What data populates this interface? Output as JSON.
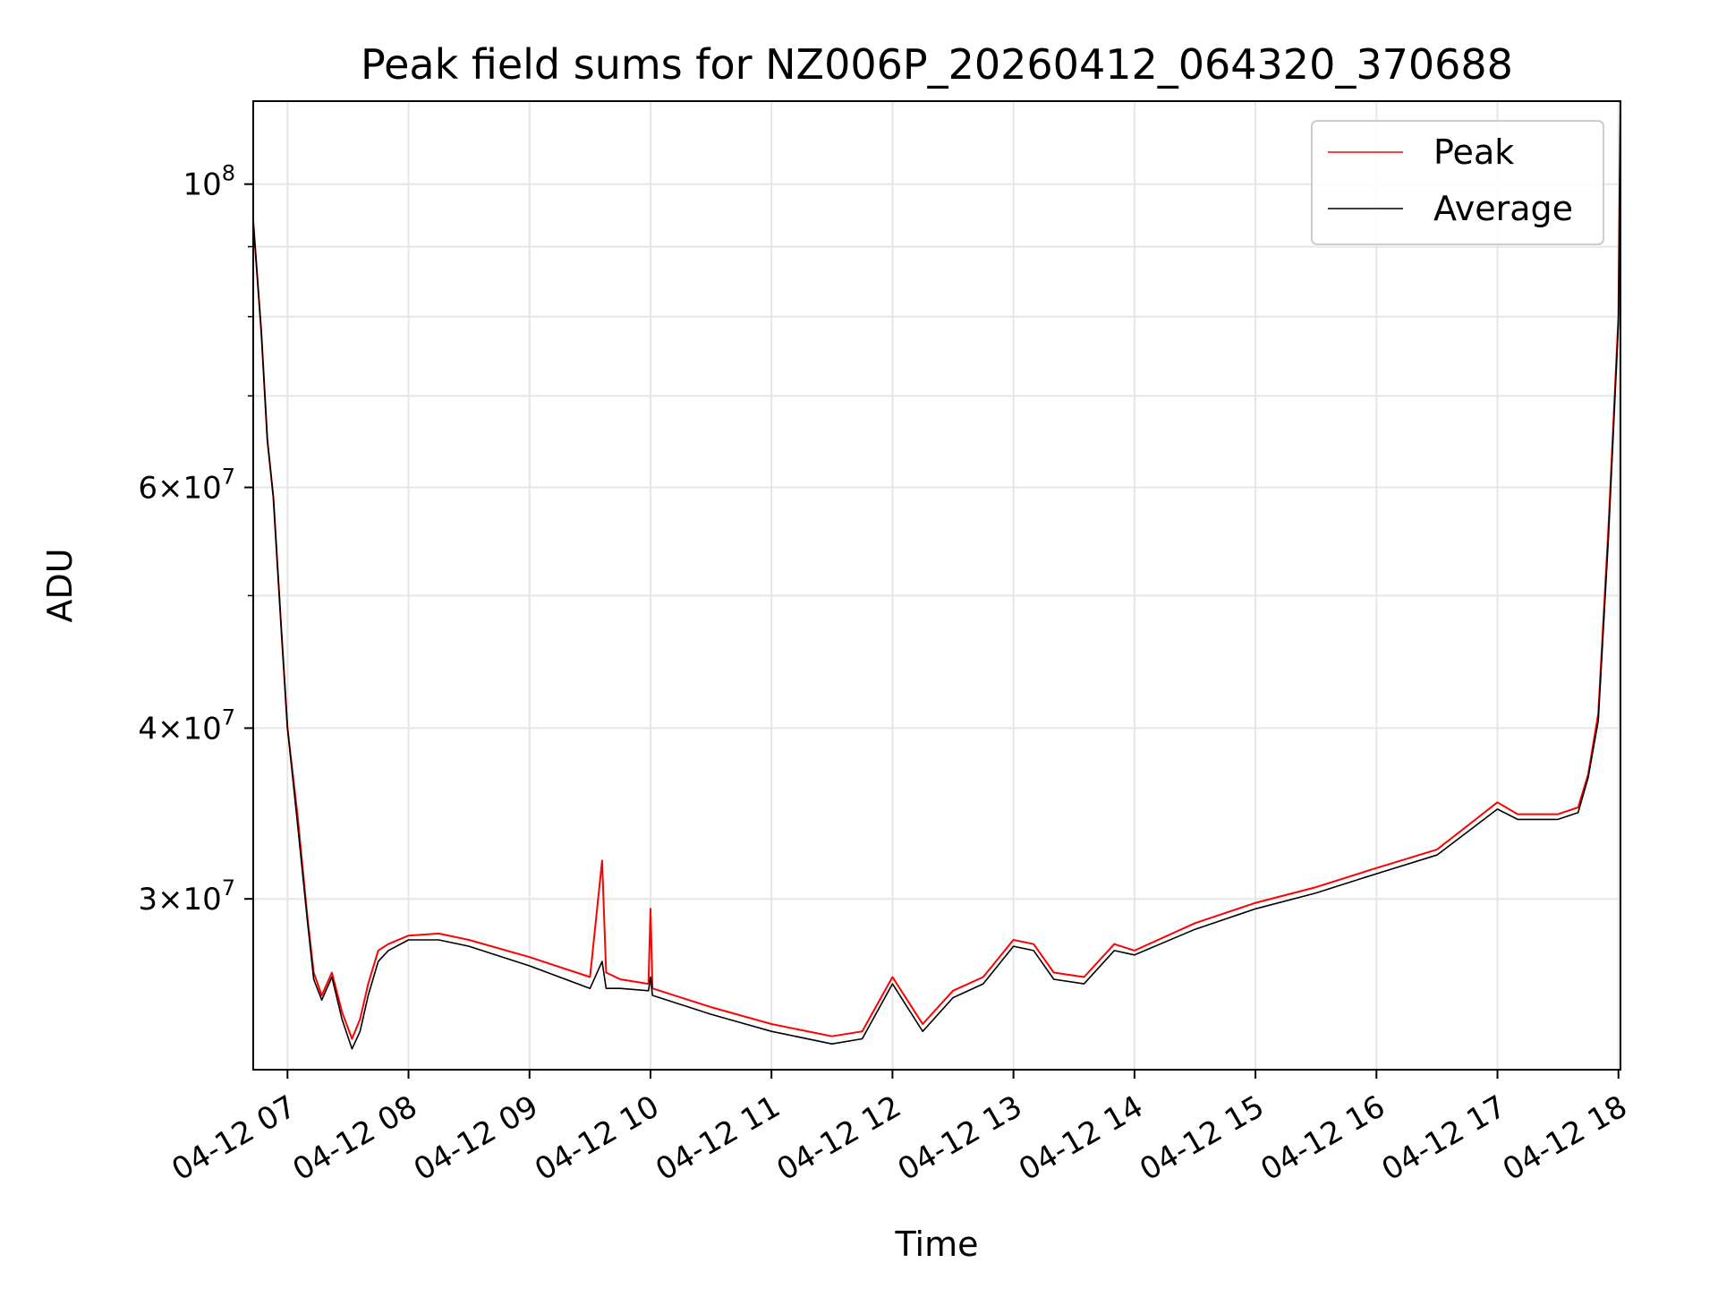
{
  "chart_data": {
    "type": "line",
    "title": "Peak field sums for NZ006P_20260412_064320_370688",
    "xlabel": "Time",
    "ylabel": "ADU",
    "yscale": "log",
    "xlim": [
      "04-12 06:43",
      "04-12 18:01"
    ],
    "ylim": [
      22500000,
      115000000
    ],
    "grid": true,
    "legend": "top-right",
    "x_ticks": [
      "04-12 07",
      "04-12 08",
      "04-12 09",
      "04-12 10",
      "04-12 11",
      "04-12 12",
      "04-12 13",
      "04-12 14",
      "04-12 15",
      "04-12 16",
      "04-12 17",
      "04-12 18"
    ],
    "y_ticks": [
      {
        "value": 30000000,
        "mantissa": "3",
        "exponent": "7"
      },
      {
        "value": 40000000,
        "mantissa": "4",
        "exponent": "7"
      },
      {
        "value": 60000000,
        "mantissa": "6",
        "exponent": "7"
      },
      {
        "value": 100000000,
        "mantissa": "",
        "exponent": "8"
      }
    ],
    "series": [
      {
        "name": "Peak",
        "color": "#ff0000",
        "x": [
          "04-12 06:43",
          "04-12 06:47",
          "04-12 06:50",
          "04-12 06:53",
          "04-12 06:57",
          "04-12 07:00",
          "04-12 07:05",
          "04-12 07:10",
          "04-12 07:13",
          "04-12 07:17",
          "04-12 07:22",
          "04-12 07:27",
          "04-12 07:32",
          "04-12 07:36",
          "04-12 07:40",
          "04-12 07:45",
          "04-12 07:50",
          "04-12 08:00",
          "04-12 08:15",
          "04-12 08:30",
          "04-12 09:00",
          "04-12 09:30",
          "04-12 09:36",
          "04-12 09:38",
          "04-12 09:45",
          "04-12 09:59",
          "04-12 10:00",
          "04-12 10:01",
          "04-12 10:30",
          "04-12 11:00",
          "04-12 11:30",
          "04-12 11:45",
          "04-12 12:00",
          "04-12 12:15",
          "04-12 12:30",
          "04-12 12:45",
          "04-12 13:00",
          "04-12 13:10",
          "04-12 13:20",
          "04-12 13:35",
          "04-12 13:50",
          "04-12 14:00",
          "04-12 14:30",
          "04-12 15:00",
          "04-12 15:30",
          "04-12 16:00",
          "04-12 16:30",
          "04-12 17:00",
          "04-12 17:10",
          "04-12 17:30",
          "04-12 17:40",
          "04-12 17:45",
          "04-12 17:50",
          "04-12 17:55",
          "04-12 18:00",
          "04-12 18:01"
        ],
        "values": [
          94000000,
          78000000,
          65000000,
          59000000,
          47000000,
          40000000,
          34500000,
          29000000,
          26500000,
          25500000,
          26500000,
          24800000,
          23700000,
          24500000,
          26000000,
          27500000,
          27800000,
          28200000,
          28300000,
          28000000,
          27200000,
          26300000,
          32000000,
          26500000,
          26200000,
          26000000,
          29500000,
          25800000,
          25000000,
          24300000,
          23800000,
          24000000,
          26300000,
          24300000,
          25700000,
          26300000,
          28000000,
          27800000,
          26500000,
          26300000,
          27800000,
          27500000,
          28800000,
          29800000,
          30600000,
          31600000,
          32600000,
          35300000,
          34600000,
          34600000,
          35000000,
          37000000,
          41000000,
          56000000,
          80000000,
          115000000
        ]
      },
      {
        "name": "Average",
        "color": "#000000",
        "x": [
          "04-12 06:43",
          "04-12 06:47",
          "04-12 06:50",
          "04-12 06:53",
          "04-12 06:57",
          "04-12 07:00",
          "04-12 07:05",
          "04-12 07:10",
          "04-12 07:13",
          "04-12 07:17",
          "04-12 07:22",
          "04-12 07:27",
          "04-12 07:32",
          "04-12 07:36",
          "04-12 07:40",
          "04-12 07:45",
          "04-12 07:50",
          "04-12 08:00",
          "04-12 08:15",
          "04-12 08:30",
          "04-12 09:00",
          "04-12 09:30",
          "04-12 09:36",
          "04-12 09:38",
          "04-12 09:45",
          "04-12 09:59",
          "04-12 10:00",
          "04-12 10:01",
          "04-12 10:30",
          "04-12 11:00",
          "04-12 11:30",
          "04-12 11:45",
          "04-12 12:00",
          "04-12 12:15",
          "04-12 12:30",
          "04-12 12:45",
          "04-12 13:00",
          "04-12 13:10",
          "04-12 13:20",
          "04-12 13:35",
          "04-12 13:50",
          "04-12 14:00",
          "04-12 14:30",
          "04-12 15:00",
          "04-12 15:30",
          "04-12 16:00",
          "04-12 16:30",
          "04-12 17:00",
          "04-12 17:10",
          "04-12 17:30",
          "04-12 17:40",
          "04-12 17:45",
          "04-12 17:50",
          "04-12 17:55",
          "04-12 18:00",
          "04-12 18:01"
        ],
        "values": [
          94000000,
          78000000,
          65000000,
          59000000,
          47000000,
          40000000,
          34000000,
          28800000,
          26200000,
          25300000,
          26300000,
          24500000,
          23300000,
          24000000,
          25500000,
          27000000,
          27500000,
          28000000,
          28000000,
          27700000,
          26800000,
          25800000,
          27000000,
          25800000,
          25800000,
          25700000,
          26300000,
          25500000,
          24700000,
          24000000,
          23500000,
          23700000,
          26000000,
          24000000,
          25400000,
          26000000,
          27700000,
          27500000,
          26200000,
          26000000,
          27500000,
          27300000,
          28500000,
          29500000,
          30300000,
          31300000,
          32300000,
          34900000,
          34300000,
          34300000,
          34700000,
          36800000,
          40500000,
          55000000,
          79000000,
          115000000
        ]
      }
    ]
  }
}
